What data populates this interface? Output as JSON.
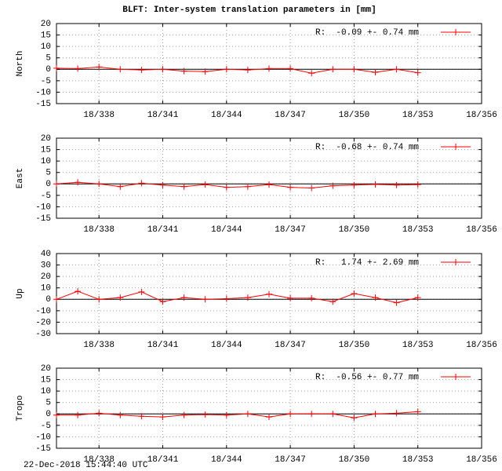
{
  "title": "BLFT: Inter-system translation parameters in [mm]",
  "footer": "22-Dec-2018 15:44:40 UTC",
  "chart_data": [
    {
      "type": "line",
      "ylabel": "North",
      "grid": true,
      "x": [
        336,
        337,
        338,
        339,
        340,
        341,
        342,
        343,
        344,
        345,
        346,
        347,
        348,
        349,
        350,
        351,
        352,
        353
      ],
      "xlim": [
        336,
        356
      ],
      "xticks": [
        {
          "value": 338,
          "label": "18/338"
        },
        {
          "value": 341,
          "label": "18/341"
        },
        {
          "value": 344,
          "label": "18/344"
        },
        {
          "value": 347,
          "label": "18/347"
        },
        {
          "value": 350,
          "label": "18/350"
        },
        {
          "value": 353,
          "label": "18/353"
        },
        {
          "value": 356,
          "label": "18/356"
        }
      ],
      "ylim": [
        -15,
        20
      ],
      "yticks": [
        -15,
        -10,
        -5,
        0,
        5,
        10,
        15,
        20
      ],
      "series": [
        {
          "name": "R:  -0.09 +- 0.74 mm",
          "color": "#ff0000",
          "values": [
            0.5,
            0.3,
            1,
            0,
            -0.3,
            0,
            -0.8,
            -1,
            0,
            -0.3,
            0.3,
            0.3,
            -1.7,
            0,
            0,
            -1.3,
            0,
            -1.5
          ]
        }
      ]
    },
    {
      "type": "line",
      "ylabel": "East",
      "grid": true,
      "x": [
        336,
        337,
        338,
        339,
        340,
        341,
        342,
        343,
        344,
        345,
        346,
        347,
        348,
        349,
        350,
        351,
        352,
        353
      ],
      "xlim": [
        336,
        356
      ],
      "xticks": [
        {
          "value": 338,
          "label": "18/338"
        },
        {
          "value": 341,
          "label": "18/341"
        },
        {
          "value": 344,
          "label": "18/344"
        },
        {
          "value": 347,
          "label": "18/347"
        },
        {
          "value": 350,
          "label": "18/350"
        },
        {
          "value": 353,
          "label": "18/353"
        },
        {
          "value": 356,
          "label": "18/356"
        }
      ],
      "ylim": [
        -15,
        20
      ],
      "yticks": [
        -15,
        -10,
        -5,
        0,
        5,
        10,
        15,
        20
      ],
      "series": [
        {
          "name": "R:  -0.68 +- 0.74 mm",
          "color": "#ff0000",
          "values": [
            0,
            0.7,
            0,
            -1.2,
            0.3,
            -0.5,
            -1.2,
            -0.3,
            -1.5,
            -1.2,
            -0.3,
            -1.5,
            -1.8,
            -0.8,
            -0.5,
            -0.2,
            -0.5,
            -0.3
          ]
        }
      ]
    },
    {
      "type": "line",
      "ylabel": "Up",
      "grid": true,
      "x": [
        336,
        337,
        338,
        339,
        340,
        341,
        342,
        343,
        344,
        345,
        346,
        347,
        348,
        349,
        350,
        351,
        352,
        353
      ],
      "xlim": [
        336,
        356
      ],
      "xticks": [
        {
          "value": 338,
          "label": "18/338"
        },
        {
          "value": 341,
          "label": "18/341"
        },
        {
          "value": 344,
          "label": "18/344"
        },
        {
          "value": 347,
          "label": "18/347"
        },
        {
          "value": 350,
          "label": "18/350"
        },
        {
          "value": 353,
          "label": "18/353"
        },
        {
          "value": 356,
          "label": "18/356"
        }
      ],
      "ylim": [
        -30,
        40
      ],
      "yticks": [
        -30,
        -20,
        -10,
        0,
        10,
        20,
        30,
        40
      ],
      "series": [
        {
          "name": "R:   1.74 +- 2.69 mm",
          "color": "#ff0000",
          "values": [
            0,
            7,
            0,
            1.5,
            6.5,
            -2,
            1.5,
            0,
            0.5,
            1.5,
            4.5,
            1,
            1,
            -2,
            5,
            1.5,
            -3,
            1.5
          ]
        }
      ]
    },
    {
      "type": "line",
      "ylabel": "Tropo",
      "grid": true,
      "x": [
        336,
        337,
        338,
        339,
        340,
        341,
        342,
        343,
        344,
        345,
        346,
        347,
        348,
        349,
        350,
        351,
        352,
        353
      ],
      "xlim": [
        336,
        356
      ],
      "xticks": [
        {
          "value": 338,
          "label": "18/338"
        },
        {
          "value": 341,
          "label": "18/341"
        },
        {
          "value": 344,
          "label": "18/344"
        },
        {
          "value": 347,
          "label": "18/347"
        },
        {
          "value": 350,
          "label": "18/350"
        },
        {
          "value": 353,
          "label": "18/353"
        },
        {
          "value": 356,
          "label": "18/356"
        }
      ],
      "ylim": [
        -15,
        20
      ],
      "yticks": [
        -15,
        -10,
        -5,
        0,
        5,
        10,
        15,
        20
      ],
      "series": [
        {
          "name": "R:  -0.56 +- 0.77 mm",
          "color": "#ff0000",
          "values": [
            -0.5,
            -0.5,
            0.3,
            -0.5,
            -1,
            -1.3,
            -0.5,
            -0.3,
            -0.5,
            0,
            -1.3,
            0,
            0,
            0,
            -1.7,
            0,
            0.3,
            1
          ]
        }
      ]
    }
  ]
}
